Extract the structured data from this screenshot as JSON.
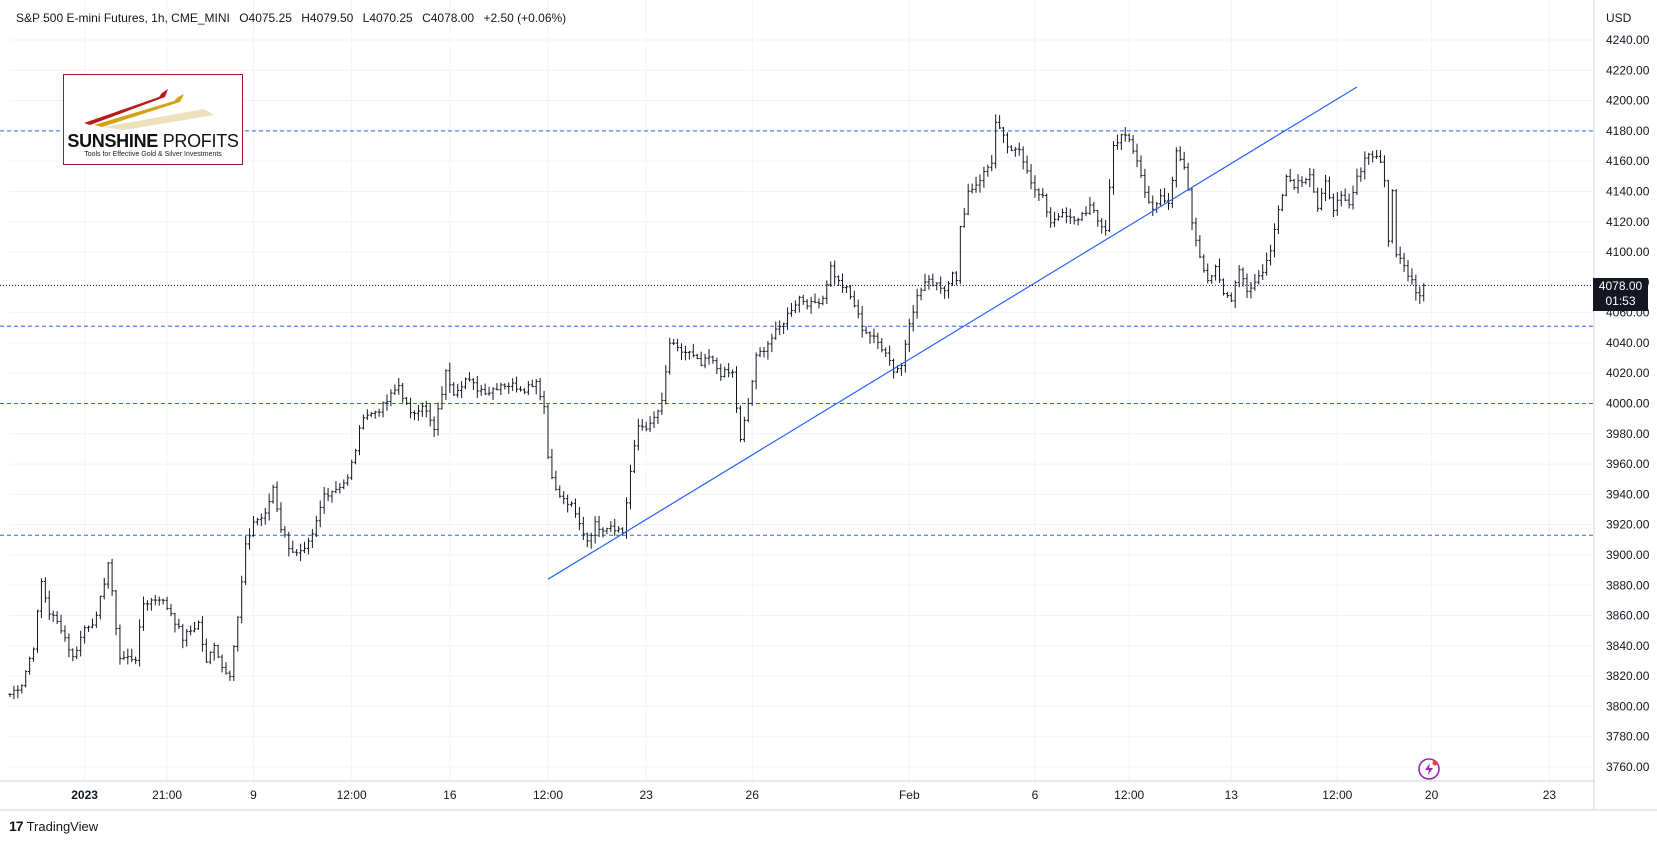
{
  "header": {
    "symbol": "S&P 500 E-mini Futures, 1h, CME_MINI",
    "open": "O4075.25",
    "high": "H4079.50",
    "low": "L4070.25",
    "close": "C4078.00",
    "change": "+2.50 (+0.06%)"
  },
  "logo": {
    "brand_bold": "SUNSHINE",
    "brand_thin": "PROFITS",
    "tagline": "Tools for Effective Gold & Silver Investments"
  },
  "footer": {
    "brand": "TradingView",
    "brand_mark": "17"
  },
  "current_price": {
    "value": "4078.00",
    "countdown": "01:53"
  },
  "chart_data": {
    "type": "bar",
    "subtype": "ohlc",
    "currency": "USD",
    "y_axis": {
      "min": 3750,
      "max": 4250,
      "ticks": [
        3760,
        3780,
        3800,
        3820,
        3840,
        3860,
        3880,
        3900,
        3920,
        3940,
        3960,
        3980,
        4000,
        4020,
        4040,
        4060,
        4080,
        4100,
        4120,
        4140,
        4160,
        4180,
        4200,
        4220,
        4240
      ]
    },
    "x_ticks": [
      {
        "label": "2023",
        "bar": 19,
        "bold": true
      },
      {
        "label": "21:00",
        "bar": 40
      },
      {
        "label": "9",
        "bar": 62
      },
      {
        "label": "12:00",
        "bar": 87
      },
      {
        "label": "16",
        "bar": 112
      },
      {
        "label": "12:00",
        "bar": 137
      },
      {
        "label": "23",
        "bar": 162
      },
      {
        "label": "26",
        "bar": 189
      },
      {
        "label": "Feb",
        "bar": 229
      },
      {
        "label": "6",
        "bar": 261
      },
      {
        "label": "12:00",
        "bar": 285
      },
      {
        "label": "13",
        "bar": 311
      },
      {
        "label": "12:00",
        "bar": 338
      },
      {
        "label": "20",
        "bar": 362
      },
      {
        "label": "23",
        "bar": 392
      }
    ],
    "bars_total": 400,
    "key_points": [
      [
        0,
        3808
      ],
      [
        3,
        3815
      ],
      [
        6,
        3840
      ],
      [
        8,
        3882
      ],
      [
        10,
        3862
      ],
      [
        13,
        3852
      ],
      [
        16,
        3832
      ],
      [
        19,
        3852
      ],
      [
        22,
        3858
      ],
      [
        25,
        3895
      ],
      [
        28,
        3832
      ],
      [
        32,
        3832
      ],
      [
        34,
        3868
      ],
      [
        38,
        3872
      ],
      [
        41,
        3862
      ],
      [
        44,
        3845
      ],
      [
        48,
        3855
      ],
      [
        50,
        3828
      ],
      [
        52,
        3842
      ],
      [
        54,
        3826
      ],
      [
        56,
        3822
      ],
      [
        58,
        3858
      ],
      [
        60,
        3905
      ],
      [
        62,
        3922
      ],
      [
        65,
        3926
      ],
      [
        67,
        3945
      ],
      [
        69,
        3918
      ],
      [
        71,
        3906
      ],
      [
        73,
        3900
      ],
      [
        75,
        3902
      ],
      [
        77,
        3912
      ],
      [
        80,
        3940
      ],
      [
        83,
        3944
      ],
      [
        86,
        3950
      ],
      [
        88,
        3970
      ],
      [
        90,
        3993
      ],
      [
        92,
        3993
      ],
      [
        95,
        3998
      ],
      [
        97,
        4005
      ],
      [
        99,
        4012
      ],
      [
        102,
        3992
      ],
      [
        105,
        4000
      ],
      [
        108,
        3982
      ],
      [
        111,
        4020
      ],
      [
        113,
        4008
      ],
      [
        116,
        4016
      ],
      [
        119,
        4010
      ],
      [
        122,
        4008
      ],
      [
        125,
        4013
      ],
      [
        128,
        4012
      ],
      [
        131,
        4010
      ],
      [
        134,
        4015
      ],
      [
        136,
        3998
      ],
      [
        137,
        3965
      ],
      [
        139,
        3942
      ],
      [
        141,
        3936
      ],
      [
        143,
        3932
      ],
      [
        145,
        3920
      ],
      [
        147,
        3910
      ],
      [
        149,
        3920
      ],
      [
        151,
        3918
      ],
      [
        153,
        3920
      ],
      [
        156,
        3915
      ],
      [
        158,
        3955
      ],
      [
        160,
        3985
      ],
      [
        163,
        3985
      ],
      [
        166,
        4000
      ],
      [
        168,
        4040
      ],
      [
        170,
        4035
      ],
      [
        173,
        4033
      ],
      [
        176,
        4025
      ],
      [
        178,
        4030
      ],
      [
        181,
        4020
      ],
      [
        184,
        4020
      ],
      [
        186,
        3975
      ],
      [
        188,
        4000
      ],
      [
        190,
        4030
      ],
      [
        193,
        4040
      ],
      [
        196,
        4050
      ],
      [
        199,
        4063
      ],
      [
        201,
        4070
      ],
      [
        204,
        4065
      ],
      [
        207,
        4070
      ],
      [
        209,
        4090
      ],
      [
        211,
        4080
      ],
      [
        213,
        4075
      ],
      [
        215,
        4065
      ],
      [
        217,
        4050
      ],
      [
        219,
        4045
      ],
      [
        221,
        4040
      ],
      [
        223,
        4035
      ],
      [
        225,
        4022
      ],
      [
        227,
        4025
      ],
      [
        229,
        4055
      ],
      [
        231,
        4070
      ],
      [
        233,
        4080
      ],
      [
        236,
        4080
      ],
      [
        238,
        4075
      ],
      [
        240,
        4088
      ],
      [
        241,
        4080
      ],
      [
        242,
        4115
      ],
      [
        244,
        4140
      ],
      [
        246,
        4145
      ],
      [
        248,
        4152
      ],
      [
        250,
        4160
      ],
      [
        251,
        4185
      ],
      [
        253,
        4175
      ],
      [
        255,
        4165
      ],
      [
        257,
        4168
      ],
      [
        259,
        4155
      ],
      [
        261,
        4140
      ],
      [
        263,
        4135
      ],
      [
        265,
        4120
      ],
      [
        267,
        4125
      ],
      [
        269,
        4123
      ],
      [
        271,
        4120
      ],
      [
        273,
        4125
      ],
      [
        275,
        4130
      ],
      [
        277,
        4120
      ],
      [
        279,
        4115
      ],
      [
        281,
        4170
      ],
      [
        283,
        4178
      ],
      [
        285,
        4173
      ],
      [
        287,
        4160
      ],
      [
        289,
        4140
      ],
      [
        291,
        4130
      ],
      [
        293,
        4135
      ],
      [
        295,
        4130
      ],
      [
        297,
        4165
      ],
      [
        299,
        4158
      ],
      [
        301,
        4120
      ],
      [
        303,
        4098
      ],
      [
        305,
        4082
      ],
      [
        307,
        4088
      ],
      [
        309,
        4072
      ],
      [
        311,
        4070
      ],
      [
        313,
        4090
      ],
      [
        315,
        4075
      ],
      [
        317,
        4080
      ],
      [
        319,
        4088
      ],
      [
        321,
        4100
      ],
      [
        323,
        4130
      ],
      [
        325,
        4150
      ],
      [
        327,
        4145
      ],
      [
        329,
        4148
      ],
      [
        331,
        4152
      ],
      [
        333,
        4128
      ],
      [
        335,
        4145
      ],
      [
        337,
        4130
      ],
      [
        339,
        4135
      ],
      [
        341,
        4130
      ],
      [
        343,
        4148
      ],
      [
        345,
        4163
      ],
      [
        347,
        4165
      ],
      [
        349,
        4160
      ],
      [
        350,
        4148
      ],
      [
        351,
        4105
      ],
      [
        352,
        4140
      ],
      [
        353,
        4100
      ],
      [
        355,
        4090
      ],
      [
        357,
        4083
      ],
      [
        358,
        4075
      ],
      [
        359,
        4072
      ],
      [
        360,
        4078
      ]
    ],
    "horizontal_lines": [
      4180,
      4051,
      4000,
      3913
    ],
    "trendline": {
      "from": [
        137,
        3884
      ],
      "to": [
        343,
        4209
      ]
    },
    "last_price": 4078.0
  }
}
